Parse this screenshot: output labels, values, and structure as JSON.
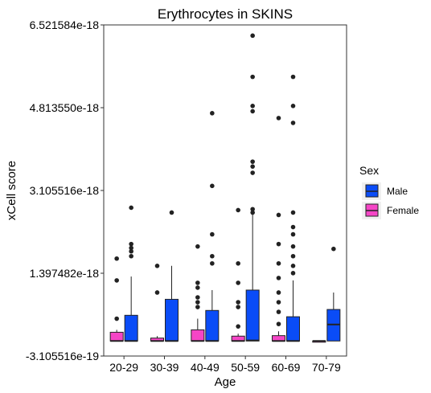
{
  "chart_data": {
    "type": "boxplot",
    "title": "Erythrocytes in SKINS",
    "xlabel": "Age",
    "ylabel": "xCell score",
    "categories": [
      "20-29",
      "30-39",
      "40-49",
      "50-59",
      "60-69",
      "70-79"
    ],
    "yticks": [
      "6.521584e-18",
      "4.813550e-18",
      "3.105516e-18",
      "1.397482e-18",
      "-3.105516e-19"
    ],
    "ylim": [
      -3.105516e-19,
      6.521584e-18
    ],
    "grid": false,
    "legend": {
      "title": "Sex",
      "position": "right",
      "entries": [
        {
          "name": "Male",
          "color": "#0A4CF7"
        },
        {
          "name": "Female",
          "color": "#F545C6"
        }
      ]
    },
    "series": [
      {
        "name": "Female",
        "color": "#F545C6",
        "boxes": [
          {
            "category": "20-29",
            "min": 0.0,
            "q1": 0.0,
            "median": 0.0,
            "q3": 1.8e-19,
            "max": 2.3e-19,
            "outliers": [
              4.6e-19,
              1.25e-18,
              1.7e-18
            ]
          },
          {
            "category": "30-39",
            "min": 0.0,
            "q1": 0.0,
            "median": 0.0,
            "q3": 6e-20,
            "max": 1e-19,
            "outliers": [
              1e-18,
              1.55e-18
            ]
          },
          {
            "category": "40-49",
            "min": 0.0,
            "q1": 0.0,
            "median": 0.0,
            "q3": 2.3e-19,
            "max": 4.6e-19,
            "outliers": [
              7e-19,
              8e-19,
              9e-19,
              1.1e-18,
              1.2e-18,
              1.95e-18
            ]
          },
          {
            "category": "50-59",
            "min": 0.0,
            "q1": 0.0,
            "median": 0.0,
            "q3": 1e-19,
            "max": 1.5e-19,
            "outliers": [
              3e-19,
              7e-19,
              8e-19,
              1.2e-18,
              1.6e-18,
              2.7e-18
            ]
          },
          {
            "category": "60-69",
            "min": 0.0,
            "q1": 0.0,
            "median": 0.0,
            "q3": 1.1e-19,
            "max": 2e-19,
            "outliers": [
              3.5e-19,
              6e-19,
              8e-19,
              1e-18,
              1.3e-18,
              1.6e-18,
              2e-18,
              2.6e-18,
              4.6e-18
            ]
          },
          {
            "category": "70-79",
            "min": 0.0,
            "q1": 0.0,
            "median": 0.0,
            "q3": 0.0,
            "max": 0.0,
            "outliers": []
          }
        ]
      },
      {
        "name": "Male",
        "color": "#0A4CF7",
        "boxes": [
          {
            "category": "20-29",
            "min": 0.0,
            "q1": 0.0,
            "median": 0.0,
            "q3": 5.3e-19,
            "max": 1.33e-18,
            "outliers": [
              1.75e-18,
              1.85e-18,
              1.92e-18,
              2e-18,
              2.75e-18
            ]
          },
          {
            "category": "30-39",
            "min": 0.0,
            "q1": 0.0,
            "median": 0.0,
            "q3": 8.6e-19,
            "max": 1.55e-18,
            "outliers": [
              2.65e-18
            ]
          },
          {
            "category": "40-49",
            "min": 0.0,
            "q1": 0.0,
            "median": 0.0,
            "q3": 6.3e-19,
            "max": 1.05e-18,
            "outliers": [
              1.6e-18,
              1.75e-18,
              2.2e-18,
              3.2e-18,
              4.7e-18
            ]
          },
          {
            "category": "50-59",
            "min": 0.0,
            "q1": 0.0,
            "median": 1e-20,
            "q3": 1.05e-18,
            "max": 2.62e-18,
            "outliers": [
              2.65e-18,
              2.72e-18,
              3.47e-18,
              3.6e-18,
              3.7e-18,
              4.74e-18,
              4.85e-18,
              5.45e-18,
              6.3e-18
            ]
          },
          {
            "category": "60-69",
            "min": 0.0,
            "q1": 0.0,
            "median": 0.0,
            "q3": 5e-19,
            "max": 1.25e-18,
            "outliers": [
              1.4e-18,
              1.55e-18,
              1.75e-18,
              1.95e-18,
              2.2e-18,
              2.35e-18,
              2.65e-18,
              4.5e-18,
              4.85e-18,
              5.45e-18
            ]
          },
          {
            "category": "70-79",
            "min": 0.0,
            "q1": 0.0,
            "median": 3.4e-19,
            "q3": 6.5e-19,
            "max": 1e-18,
            "outliers": [
              1.9e-18
            ]
          }
        ]
      }
    ]
  }
}
